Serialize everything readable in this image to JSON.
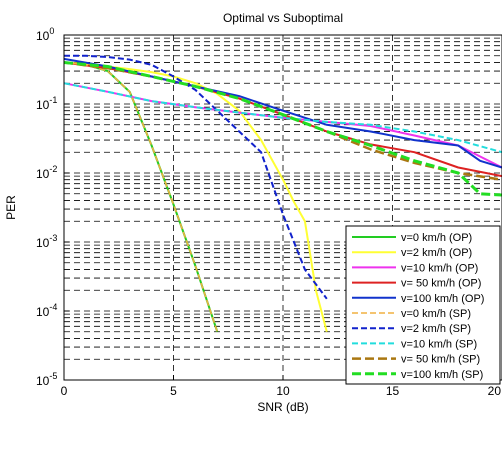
{
  "chart_data": {
    "type": "line",
    "title": "Optimal vs Suboptimal",
    "xlabel": "SNR (dB)",
    "ylabel": "PER",
    "xlim": [
      0,
      20
    ],
    "ylim": [
      1e-05,
      1
    ],
    "yscale": "log",
    "grid": true,
    "legend_position": "bottom-right",
    "x_ticks": [
      0,
      5,
      10,
      15,
      20
    ],
    "x_tick_labels": [
      "0",
      "5",
      "10",
      "15",
      "20"
    ],
    "y_ticks": [
      1e-05,
      0.0001,
      0.001,
      0.01,
      0.1,
      1
    ],
    "y_tick_labels": [
      {
        "base": "10",
        "exp": "-5"
      },
      {
        "base": "10",
        "exp": "-4"
      },
      {
        "base": "10",
        "exp": "-3"
      },
      {
        "base": "10",
        "exp": "-2"
      },
      {
        "base": "10",
        "exp": "-1"
      },
      {
        "base": "10",
        "exp": "0"
      }
    ],
    "series": [
      {
        "name": "v=0 km/h (OP)",
        "color": "#22cc22",
        "dash": "solid",
        "width": 2,
        "x": [
          0,
          1,
          2,
          3,
          4,
          5,
          6,
          7
        ],
        "y": [
          0.4,
          0.37,
          0.3,
          0.15,
          0.025,
          0.0035,
          0.00045,
          5e-05
        ]
      },
      {
        "name": "v=2 km/h  (OP)",
        "color": "#ffff33",
        "dash": "solid",
        "width": 2,
        "x": [
          0,
          1,
          2,
          3,
          4,
          5,
          6,
          7,
          8,
          9,
          10,
          10.5,
          11,
          11.5,
          12
        ],
        "y": [
          0.4,
          0.38,
          0.35,
          0.32,
          0.29,
          0.25,
          0.2,
          0.14,
          0.08,
          0.03,
          0.008,
          0.0038,
          0.002,
          0.0002,
          5e-05
        ]
      },
      {
        "name": "v=10 km/h  (OP)",
        "color": "#ee33ee",
        "dash": "solid",
        "width": 2,
        "x": [
          0,
          2,
          4,
          6,
          8,
          10,
          12,
          14,
          16,
          18,
          20
        ],
        "y": [
          0.2,
          0.15,
          0.11,
          0.09,
          0.075,
          0.063,
          0.055,
          0.048,
          0.035,
          0.025,
          0.012
        ]
      },
      {
        "name": "v= 50 km/h (OP)",
        "color": "#dd2222",
        "dash": "solid",
        "width": 2,
        "x": [
          0,
          2,
          4,
          6,
          8,
          10,
          12,
          14,
          16,
          18,
          20
        ],
        "y": [
          0.4,
          0.33,
          0.25,
          0.18,
          0.12,
          0.07,
          0.04,
          0.026,
          0.02,
          0.012,
          0.009
        ]
      },
      {
        "name": "v=100 km/h  (OP)",
        "color": "#1133cc",
        "dash": "solid",
        "width": 2,
        "x": [
          0,
          2,
          4,
          6,
          8,
          10,
          12,
          14,
          16,
          18,
          19,
          20
        ],
        "y": [
          0.45,
          0.35,
          0.25,
          0.18,
          0.13,
          0.08,
          0.05,
          0.04,
          0.03,
          0.025,
          0.015,
          0.012
        ]
      },
      {
        "name": "v=0 km/h (SP)",
        "color": "#f0b040",
        "dash": "dashed",
        "width": 1.5,
        "x": [
          0,
          1,
          2,
          3,
          4,
          5,
          6,
          7
        ],
        "y": [
          0.4,
          0.37,
          0.3,
          0.15,
          0.025,
          0.0035,
          0.00045,
          5e-05
        ]
      },
      {
        "name": "v=2 km/h (SP)",
        "color": "#1122cc",
        "dash": "dashed",
        "width": 2,
        "x": [
          0,
          1,
          2,
          3,
          4,
          5,
          6,
          7,
          8,
          9,
          10,
          11,
          12
        ],
        "y": [
          0.5,
          0.5,
          0.48,
          0.44,
          0.37,
          0.25,
          0.16,
          0.08,
          0.04,
          0.02,
          0.0025,
          0.0004,
          0.00015
        ]
      },
      {
        "name": "v=10 km/h (SP)",
        "color": "#22dddd",
        "dash": "dashed",
        "width": 2,
        "x": [
          0,
          2,
          4,
          6,
          8,
          10,
          12,
          14,
          16,
          18,
          20
        ],
        "y": [
          0.2,
          0.15,
          0.11,
          0.09,
          0.075,
          0.063,
          0.055,
          0.05,
          0.04,
          0.03,
          0.02
        ]
      },
      {
        "name": "v= 50 km/h (SP)",
        "color": "#aa7711",
        "dash": "dashed",
        "width": 2.5,
        "x": [
          0,
          2,
          4,
          6,
          8,
          10,
          12,
          14,
          16,
          18,
          20
        ],
        "y": [
          0.4,
          0.33,
          0.25,
          0.18,
          0.12,
          0.07,
          0.04,
          0.022,
          0.014,
          0.01,
          0.008
        ]
      },
      {
        "name": "v=100 km/h (SP)",
        "color": "#22dd22",
        "dash": "dashed",
        "width": 3,
        "x": [
          0,
          2,
          4,
          6,
          8,
          10,
          12,
          14,
          16,
          18,
          19,
          20
        ],
        "y": [
          0.4,
          0.35,
          0.25,
          0.18,
          0.12,
          0.07,
          0.04,
          0.025,
          0.015,
          0.01,
          0.005,
          0.0048
        ]
      }
    ]
  }
}
